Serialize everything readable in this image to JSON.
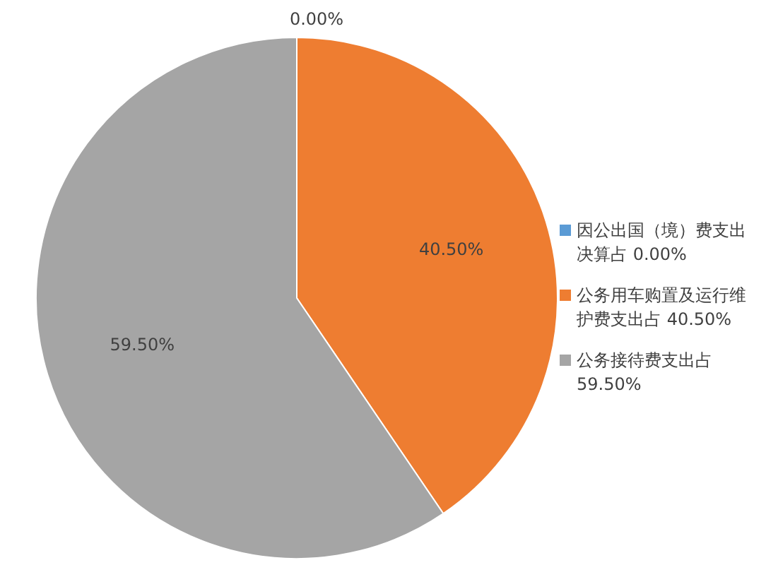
{
  "chart_data": {
    "type": "pie",
    "categories": [
      "因公出国（境）费支出决算占",
      "公务用车购置及运行维护费支出占",
      "公务接待费支出占"
    ],
    "values": [
      0,
      40.5,
      59.5
    ],
    "value_labels": [
      "0.00%",
      "40.50%",
      "59.50%"
    ],
    "colors": [
      "#5b9bd5",
      "#ee7d31",
      "#a5a5a5"
    ],
    "legend": "right"
  }
}
